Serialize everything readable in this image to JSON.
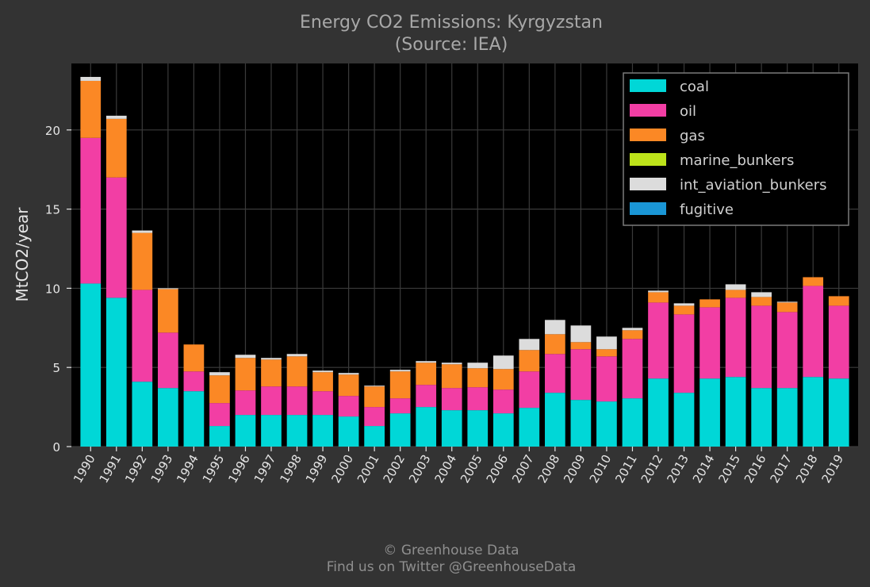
{
  "chart_data": {
    "type": "bar",
    "stacked": true,
    "title": "Energy CO2 Emissions: Kyrgyzstan",
    "subtitle": "(Source: IEA)",
    "xlabel": "",
    "ylabel": "MtCO2/year",
    "ylim": [
      0,
      24.2
    ],
    "yticks": [
      0,
      5,
      10,
      15,
      20
    ],
    "grid": true,
    "legend_position": "top-right",
    "categories": [
      "1990",
      "1991",
      "1992",
      "1993",
      "1994",
      "1995",
      "1996",
      "1997",
      "1998",
      "1999",
      "2000",
      "2001",
      "2002",
      "2003",
      "2004",
      "2005",
      "2006",
      "2007",
      "2008",
      "2009",
      "2010",
      "2011",
      "2012",
      "2013",
      "2014",
      "2015",
      "2016",
      "2017",
      "2018",
      "2019"
    ],
    "series": [
      {
        "name": "coal",
        "color": "#00d7d7",
        "values": [
          10.3,
          9.4,
          4.1,
          3.7,
          3.5,
          1.3,
          2.0,
          2.0,
          2.0,
          2.0,
          1.9,
          1.3,
          2.1,
          2.5,
          2.3,
          2.3,
          2.1,
          2.45,
          3.4,
          2.95,
          2.85,
          3.05,
          4.3,
          3.4,
          4.3,
          4.4,
          3.7,
          3.7,
          4.4,
          4.3
        ]
      },
      {
        "name": "oil",
        "color": "#f23ea4",
        "values": [
          9.2,
          7.6,
          5.8,
          3.5,
          1.25,
          1.45,
          1.55,
          1.8,
          1.8,
          1.5,
          1.3,
          1.2,
          0.95,
          1.4,
          1.4,
          1.45,
          1.5,
          2.3,
          2.45,
          3.2,
          2.85,
          3.75,
          4.8,
          4.95,
          4.5,
          5.0,
          5.2,
          4.8,
          5.75,
          4.6
        ]
      },
      {
        "name": "gas",
        "color": "#fb8825",
        "values": [
          3.6,
          3.7,
          3.6,
          2.75,
          1.7,
          1.75,
          2.05,
          1.7,
          1.9,
          1.2,
          1.35,
          1.3,
          1.7,
          1.4,
          1.5,
          1.2,
          1.3,
          1.35,
          1.25,
          0.45,
          0.45,
          0.55,
          0.65,
          0.55,
          0.5,
          0.5,
          0.55,
          0.6,
          0.55,
          0.6
        ]
      },
      {
        "name": "marine_bunkers",
        "color": "#bde31a",
        "values": [
          0,
          0,
          0,
          0,
          0,
          0,
          0,
          0,
          0,
          0,
          0,
          0,
          0,
          0,
          0,
          0,
          0,
          0,
          0,
          0,
          0,
          0,
          0,
          0,
          0,
          0,
          0,
          0,
          0,
          0
        ]
      },
      {
        "name": "int_aviation_bunkers",
        "color": "#dcdcdc",
        "values": [
          0.25,
          0.2,
          0.15,
          0.05,
          0,
          0.2,
          0.2,
          0.1,
          0.15,
          0.1,
          0.1,
          0.05,
          0.1,
          0.1,
          0.1,
          0.35,
          0.85,
          0.7,
          0.9,
          1.05,
          0.8,
          0.15,
          0.1,
          0.15,
          0,
          0.35,
          0.3,
          0.05,
          0,
          0
        ]
      },
      {
        "name": "fugitive",
        "color": "#1a96d6",
        "values": [
          0,
          0,
          0,
          0,
          0,
          0,
          0,
          0,
          0,
          0,
          0,
          0,
          0,
          0,
          0,
          0,
          0,
          0,
          0,
          0,
          0,
          0,
          0,
          0,
          0,
          0,
          0,
          0,
          0,
          0
        ]
      }
    ]
  },
  "footer": {
    "line1": "© Greenhouse Data",
    "line2": "Find us on Twitter @GreenhouseData"
  }
}
